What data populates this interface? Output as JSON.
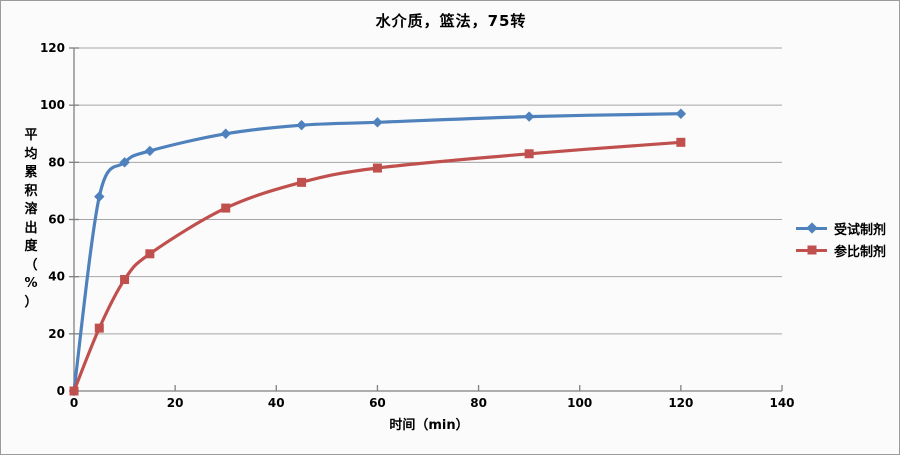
{
  "chart": {
    "title": "水介质，篮法，75转"
  },
  "chart_data": {
    "type": "line",
    "title": "水介质，篮法，75转",
    "xlabel": "时间（min）",
    "ylabel": "平均累积溶出度（%）",
    "x": [
      0,
      5,
      10,
      15,
      30,
      45,
      60,
      90,
      120
    ],
    "series": [
      {
        "name": "受试制剂",
        "color": "#4F81BD",
        "marker": "diamond",
        "values": [
          0,
          68,
          80,
          84,
          90,
          93,
          94,
          96,
          97
        ]
      },
      {
        "name": "参比制剂",
        "color": "#C0504D",
        "marker": "square",
        "values": [
          0,
          22,
          39,
          48,
          64,
          73,
          78,
          83,
          87
        ]
      }
    ],
    "xlim": [
      0,
      140
    ],
    "ylim": [
      0,
      120
    ],
    "xticks": [
      0,
      20,
      40,
      60,
      80,
      100,
      120,
      140
    ],
    "yticks": [
      0,
      20,
      40,
      60,
      80,
      100,
      120
    ],
    "grid": true,
    "line_smoothing": true,
    "legend_position": "right",
    "colors": {
      "axis": "#808080",
      "gridline": "#A6A6A6",
      "background": "#FBFBFB",
      "border": "#9B9B9B",
      "text": "#000000"
    }
  }
}
